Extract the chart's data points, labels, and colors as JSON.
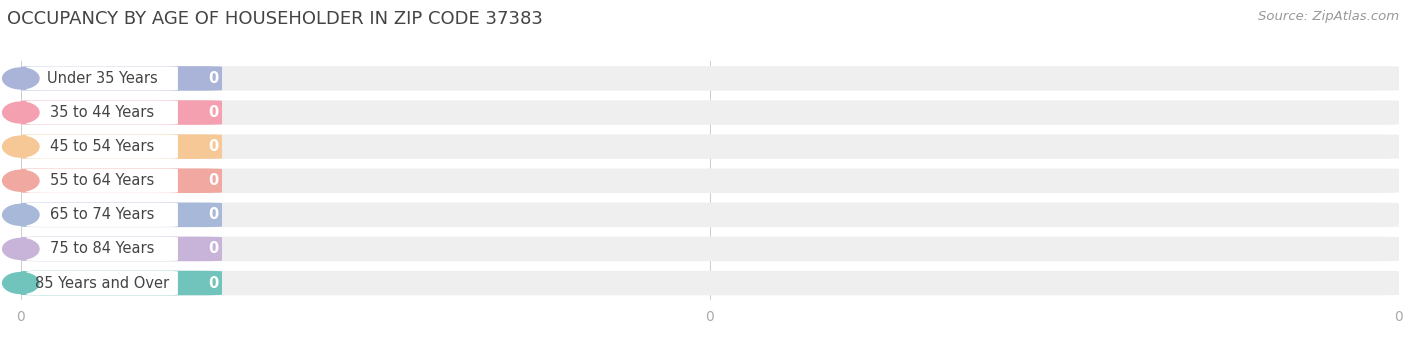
{
  "title": "OCCUPANCY BY AGE OF HOUSEHOLDER IN ZIP CODE 37383",
  "source": "Source: ZipAtlas.com",
  "categories": [
    "Under 35 Years",
    "35 to 44 Years",
    "45 to 54 Years",
    "55 to 64 Years",
    "65 to 74 Years",
    "75 to 84 Years",
    "85 Years and Over"
  ],
  "values": [
    0,
    0,
    0,
    0,
    0,
    0,
    0
  ],
  "bar_colors": [
    "#aab4d8",
    "#f4a0b0",
    "#f5c896",
    "#f0a8a0",
    "#a8b8d8",
    "#c8b4d8",
    "#70c4bc"
  ],
  "bg_track_color": "#efefef",
  "title_fontsize": 13,
  "label_fontsize": 10.5,
  "tick_fontsize": 10,
  "source_fontsize": 9.5,
  "background_color": "#ffffff",
  "title_color": "#444444",
  "label_color": "#444444",
  "value_label_color": "#ffffff",
  "source_color": "#999999",
  "xlim_max": 1.0,
  "n_xticks": 3,
  "xtick_positions": [
    0.0,
    0.5,
    1.0
  ],
  "xtick_labels": [
    "0",
    "0",
    "0"
  ]
}
